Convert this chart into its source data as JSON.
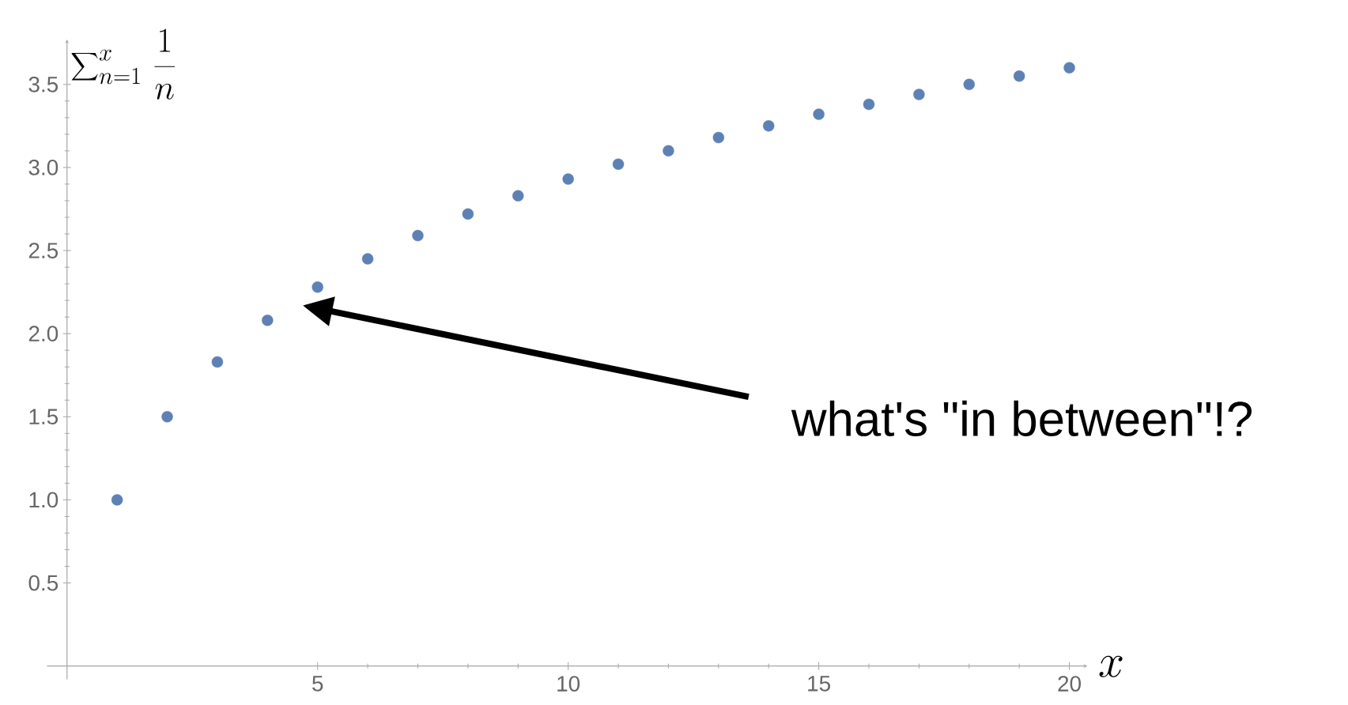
{
  "chart_data": {
    "type": "scatter",
    "xlabel": "x",
    "ylabel": "\\sum\\nolimits_{n=1}^{x}\\, \\frac{1}{n}",
    "x": [
      1,
      2,
      3,
      4,
      5,
      6,
      7,
      8,
      9,
      10,
      11,
      12,
      13,
      14,
      15,
      16,
      17,
      18,
      19,
      20
    ],
    "values": [
      1.0,
      1.5,
      1.83,
      2.08,
      2.28,
      2.45,
      2.59,
      2.72,
      2.83,
      2.93,
      3.02,
      3.1,
      3.18,
      3.25,
      3.32,
      3.38,
      3.44,
      3.5,
      3.55,
      3.6
    ],
    "color": "#5e81b5",
    "marker": "circle",
    "xlim": [
      -0.4,
      20.36
    ],
    "ylim": [
      -0.08,
      3.77
    ],
    "xticks": [
      5,
      10,
      15,
      20
    ],
    "yticks": [
      {
        "value": 0.5,
        "label": "0.5"
      },
      {
        "value": 1,
        "label": "1.0"
      },
      {
        "value": 1.5,
        "label": "1.5"
      },
      {
        "value": 2,
        "label": "2.0"
      },
      {
        "value": 2.5,
        "label": "2.5"
      },
      {
        "value": 3,
        "label": "3.0"
      },
      {
        "value": 3.5,
        "label": "3.5"
      }
    ],
    "annotations": [
      "what's \"in between\"!?"
    ]
  }
}
